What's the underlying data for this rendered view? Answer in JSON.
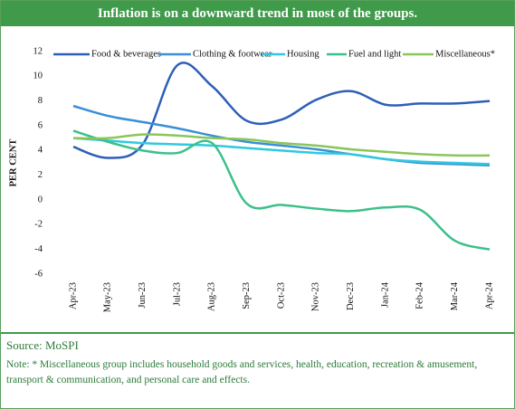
{
  "chart_data": {
    "type": "line",
    "title": "Inflation is on a downward trend in most of the groups.",
    "y_label": "PER CENT",
    "categories": [
      "Apr-23",
      "May-23",
      "Jun-23",
      "Jul-23",
      "Aug-23",
      "Sep-23",
      "Oct-23",
      "Nov-23",
      "Dec-23",
      "Jan-24",
      "Feb-24",
      "Mar-24",
      "Apr-24"
    ],
    "series": [
      {
        "name": "Food & beverages",
        "color": "#2e5fb8",
        "values": [
          4.3,
          3.4,
          4.5,
          10.9,
          9.2,
          6.4,
          6.5,
          8.1,
          8.8,
          7.7,
          7.8,
          7.8,
          8.0
        ]
      },
      {
        "name": "Clothing & footwear",
        "color": "#3a8fd6",
        "values": [
          7.6,
          6.8,
          6.3,
          5.8,
          5.2,
          4.7,
          4.4,
          4.1,
          3.7,
          3.3,
          3.0,
          2.9,
          2.8
        ]
      },
      {
        "name": "Housing",
        "color": "#30c8e0",
        "values": [
          5.0,
          4.8,
          4.6,
          4.5,
          4.4,
          4.2,
          4.0,
          3.8,
          3.7,
          3.3,
          3.1,
          3.0,
          2.9
        ]
      },
      {
        "name": "Fuel and light",
        "color": "#3cc08a",
        "values": [
          5.6,
          4.7,
          4.0,
          3.8,
          4.6,
          -0.3,
          -0.4,
          -0.7,
          -0.9,
          -0.6,
          -0.8,
          -3.3,
          -4.0
        ]
      },
      {
        "name": "Miscellaneous*",
        "color": "#8ac65a",
        "values": [
          5.0,
          5.0,
          5.3,
          5.2,
          5.0,
          4.9,
          4.6,
          4.4,
          4.1,
          3.9,
          3.7,
          3.6,
          3.6
        ]
      }
    ],
    "ylim": [
      -6,
      12
    ],
    "yticks": [
      -6,
      -4,
      -2,
      0,
      2,
      4,
      6,
      8,
      10,
      12
    ],
    "grid": false,
    "legend": "top"
  },
  "footer": {
    "source": "Source: MoSPI",
    "note": "Note: * Miscellaneous group includes household goods and services, health, education, recreation & amusement, transport & communication, and personal care and effects."
  }
}
